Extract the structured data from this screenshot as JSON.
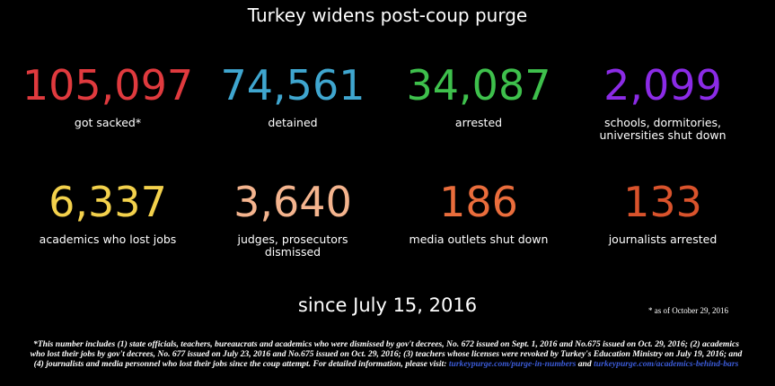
{
  "title": "Turkey widens post-coup purge",
  "stats": [
    {
      "number": "105,097",
      "label": "got sacked*",
      "color": "#e03a3e"
    },
    {
      "number": "74,561",
      "label": "detained",
      "color": "#3fa6cf"
    },
    {
      "number": "34,087",
      "label": "arrested",
      "color": "#3ec04c"
    },
    {
      "number": "2,099",
      "label": "schools, dormitories, universities shut down",
      "color": "#8b2be6"
    },
    {
      "number": "6,337",
      "label": "academics who lost jobs",
      "color": "#f3d14c"
    },
    {
      "number": "3,640",
      "label": "judges, prosecutors dismissed",
      "color": "#f4b48e"
    },
    {
      "number": "186",
      "label": "media outlets shut down",
      "color": "#ea6d3c"
    },
    {
      "number": "133",
      "label": "journalists arrested",
      "color": "#d9532c"
    }
  ],
  "since": "since July 15, 2016",
  "as_of": "* as of October 29, 2016",
  "footnote": {
    "text": "*This number includes (1) state officials, teachers, bureaucrats and academics who were dismissed by gov't decrees, No. 672 issued on Sept. 1, 2016 and No.675 issued on Oct. 29, 2016; (2) academics who lost their jobs by gov't decrees, No. 677 issued on July 23, 2016 and No.675 issued on Oct. 29, 2016; (3) teachers whose licenses were revoked by Turkey's Education Ministry on July 19, 2016; and (4) journalists and media personnel who lost their jobs since the coup attempt. For detailed information, please visit:",
    "link1": "turkeypurge.com/purge-in-numbers",
    "joiner": "and",
    "link2": "turkeypurge.com/academics-behind-bars"
  }
}
